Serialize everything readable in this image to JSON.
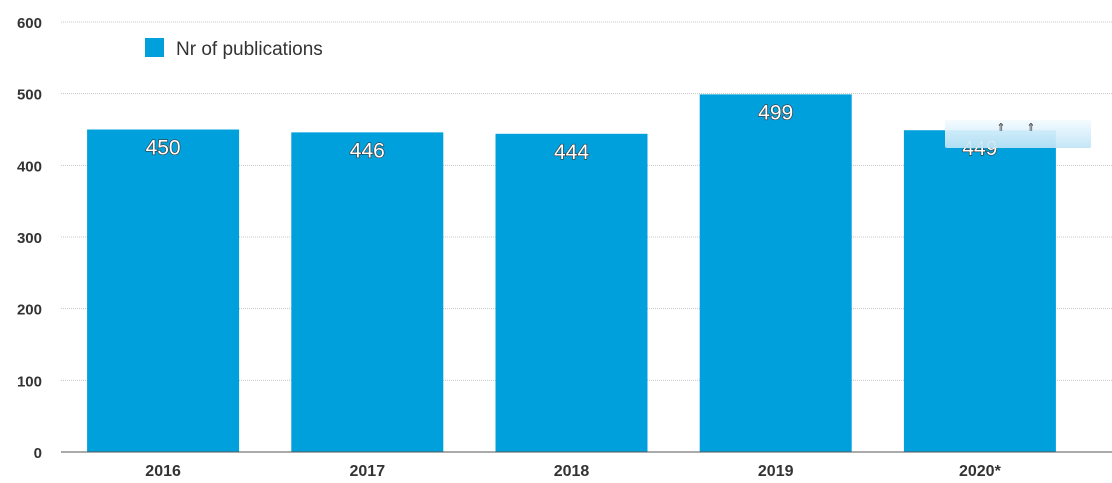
{
  "chart_data": {
    "type": "bar",
    "categories": [
      "2016",
      "2017",
      "2018",
      "2019",
      "2020*"
    ],
    "series": [
      {
        "name": "Nr of publications",
        "values": [
          450,
          446,
          444,
          499,
          449
        ]
      }
    ],
    "data_labels": [
      "450",
      "446",
      "444",
      "499",
      "449"
    ],
    "ylim": [
      0,
      600
    ],
    "yticks": [
      "0",
      "100",
      "200",
      "300",
      "400",
      "500",
      "600"
    ],
    "grid": true,
    "legend_position": "top-left",
    "title": "",
    "xlabel": "",
    "ylabel": "",
    "colors": {
      "bar": "#00a0dc",
      "label_text": "#ffffff"
    }
  }
}
